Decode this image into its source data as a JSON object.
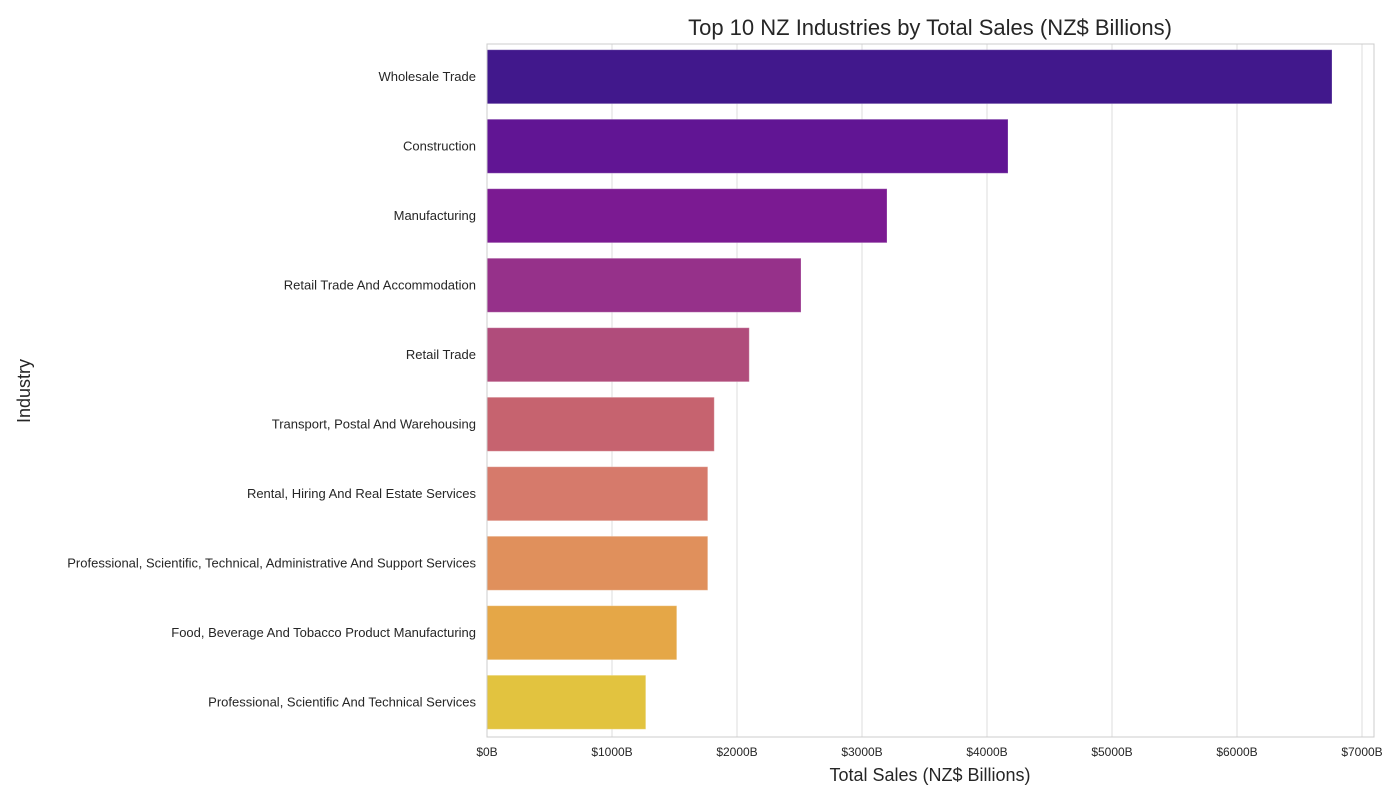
{
  "chart_data": {
    "type": "bar",
    "orientation": "horizontal",
    "title": "Top 10 NZ Industries by Total Sales (NZ$ Billions)",
    "xlabel": "Total Sales (NZ$ Billions)",
    "ylabel": "Industry",
    "xlim": [
      0,
      7100
    ],
    "grid": true,
    "x_ticks": [
      0,
      1000,
      2000,
      3000,
      4000,
      5000,
      6000,
      7000
    ],
    "x_tick_labels": [
      "$0B",
      "$1000B",
      "$2000B",
      "$3000B",
      "$4000B",
      "$5000B",
      "$6000B",
      "$7000B"
    ],
    "categories": [
      "Wholesale Trade",
      "Construction",
      "Manufacturing",
      "Retail Trade And Accommodation",
      "Retail Trade",
      "Transport, Postal And Warehousing",
      "Rental, Hiring And Real Estate Services",
      "Professional, Scientific, Technical, Administrative And Support Services",
      "Food, Beverage And Tobacco Product Manufacturing",
      "Professional, Scientific And Technical Services"
    ],
    "values": [
      6760,
      4168,
      3200,
      2512,
      2098,
      1818,
      1766,
      1766,
      1518,
      1270
    ],
    "colors": [
      "#41188c",
      "#611594",
      "#7b1a92",
      "#96318a",
      "#b04c7b",
      "#c6636f",
      "#d67a6b",
      "#e0905c",
      "#e5a747",
      "#e2c33f"
    ]
  }
}
